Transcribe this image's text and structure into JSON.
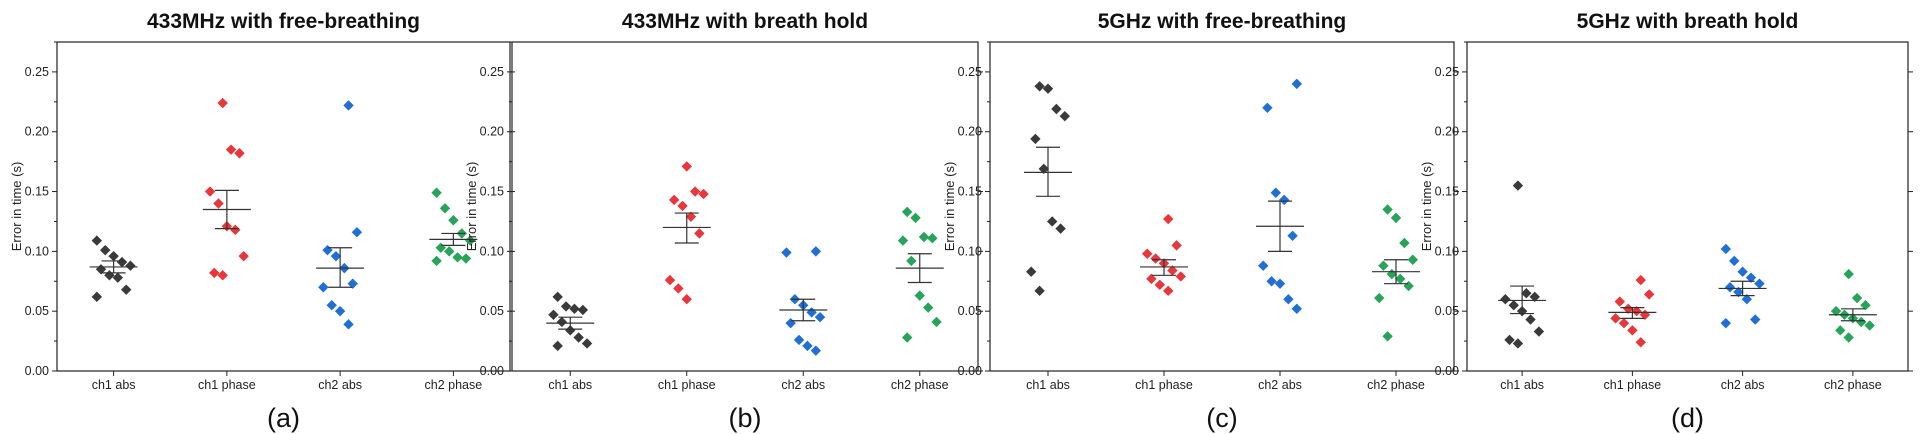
{
  "chart_data": [
    {
      "type": "scatter",
      "title": "433MHz with free-breathing",
      "panel_label": "(a)",
      "xlabel": "",
      "ylabel": "Error in time (s)",
      "ylim": [
        0,
        0.275
      ],
      "yticks": [
        "0.00",
        "0.05",
        "0.10",
        "0.15",
        "0.20",
        "0.25"
      ],
      "categories": [
        "ch1 abs",
        "ch1 phase",
        "ch2 abs",
        "ch2 phase"
      ],
      "series": [
        {
          "name": "ch1 abs",
          "color": "#3a3a3a",
          "mean": 0.087,
          "err_low": 0.082,
          "err_high": 0.092,
          "values": [
            0.062,
            0.068,
            0.078,
            0.08,
            0.085,
            0.088,
            0.091,
            0.096,
            0.101,
            0.109
          ]
        },
        {
          "name": "ch1 phase",
          "color": "#e8363a",
          "mean": 0.135,
          "err_low": 0.119,
          "err_high": 0.151,
          "values": [
            0.08,
            0.082,
            0.096,
            0.118,
            0.121,
            0.14,
            0.15,
            0.182,
            0.185,
            0.224
          ]
        },
        {
          "name": "ch2 abs",
          "color": "#1f6fd6",
          "mean": 0.086,
          "err_low": 0.07,
          "err_high": 0.103,
          "values": [
            0.039,
            0.05,
            0.055,
            0.07,
            0.073,
            0.086,
            0.096,
            0.101,
            0.116,
            0.222
          ]
        },
        {
          "name": "ch2 phase",
          "color": "#27a35a",
          "mean": 0.11,
          "err_low": 0.105,
          "err_high": 0.115,
          "values": [
            0.092,
            0.094,
            0.095,
            0.1,
            0.103,
            0.109,
            0.115,
            0.126,
            0.136,
            0.149
          ]
        }
      ]
    },
    {
      "type": "scatter",
      "title": "433MHz with breath hold",
      "panel_label": "(b)",
      "xlabel": "",
      "ylabel": "Error in time (s)",
      "ylim": [
        0,
        0.275
      ],
      "yticks": [
        "0.00",
        "0.05",
        "0.10",
        "0.15",
        "0.20",
        "0.25"
      ],
      "categories": [
        "ch1 abs",
        "ch1 phase",
        "ch2 abs",
        "ch2 phase"
      ],
      "series": [
        {
          "name": "ch1 abs",
          "color": "#3a3a3a",
          "mean": 0.04,
          "err_low": 0.035,
          "err_high": 0.045,
          "values": [
            0.021,
            0.023,
            0.028,
            0.034,
            0.041,
            0.047,
            0.051,
            0.052,
            0.054,
            0.062
          ]
        },
        {
          "name": "ch1 phase",
          "color": "#e8363a",
          "mean": 0.12,
          "err_low": 0.107,
          "err_high": 0.132,
          "values": [
            0.06,
            0.069,
            0.076,
            0.115,
            0.129,
            0.138,
            0.143,
            0.148,
            0.15,
            0.171
          ]
        },
        {
          "name": "ch2 abs",
          "color": "#1f6fd6",
          "mean": 0.051,
          "err_low": 0.042,
          "err_high": 0.06,
          "values": [
            0.017,
            0.021,
            0.026,
            0.04,
            0.045,
            0.049,
            0.055,
            0.06,
            0.099,
            0.1
          ]
        },
        {
          "name": "ch2 phase",
          "color": "#27a35a",
          "mean": 0.086,
          "err_low": 0.074,
          "err_high": 0.098,
          "values": [
            0.028,
            0.041,
            0.053,
            0.063,
            0.092,
            0.109,
            0.111,
            0.112,
            0.128,
            0.133
          ]
        }
      ]
    },
    {
      "type": "scatter",
      "title": "5GHz with free-breathing",
      "panel_label": "(c)",
      "xlabel": "",
      "ylabel": "Error in time (s)",
      "ylim": [
        0,
        0.275
      ],
      "yticks": [
        "0.00",
        "0.05",
        "0.10",
        "0.15",
        "0.20",
        "0.25"
      ],
      "categories": [
        "ch1 abs",
        "ch1 phase",
        "ch2 abs",
        "ch2 phase"
      ],
      "series": [
        {
          "name": "ch1 abs",
          "color": "#3a3a3a",
          "mean": 0.166,
          "err_low": 0.146,
          "err_high": 0.187,
          "values": [
            0.067,
            0.083,
            0.119,
            0.125,
            0.169,
            0.194,
            0.213,
            0.219,
            0.236,
            0.238
          ]
        },
        {
          "name": "ch1 phase",
          "color": "#e8363a",
          "mean": 0.087,
          "err_low": 0.08,
          "err_high": 0.093,
          "values": [
            0.067,
            0.072,
            0.077,
            0.079,
            0.084,
            0.09,
            0.094,
            0.098,
            0.105,
            0.127
          ]
        },
        {
          "name": "ch2 abs",
          "color": "#1f6fd6",
          "mean": 0.121,
          "err_low": 0.1,
          "err_high": 0.142,
          "values": [
            0.052,
            0.06,
            0.073,
            0.075,
            0.088,
            0.113,
            0.143,
            0.149,
            0.22,
            0.24
          ]
        },
        {
          "name": "ch2 phase",
          "color": "#27a35a",
          "mean": 0.083,
          "err_low": 0.073,
          "err_high": 0.093,
          "values": [
            0.029,
            0.061,
            0.071,
            0.077,
            0.081,
            0.088,
            0.093,
            0.107,
            0.128,
            0.135
          ]
        }
      ]
    },
    {
      "type": "scatter",
      "title": "5GHz with breath hold",
      "panel_label": "(d)",
      "xlabel": "",
      "ylabel": "Error in time (s)",
      "ylim": [
        0,
        0.275
      ],
      "yticks": [
        "0.00",
        "0.05",
        "0.10",
        "0.15",
        "0.20",
        "0.25"
      ],
      "categories": [
        "ch1 abs",
        "ch1 phase",
        "ch2 abs",
        "ch2 phase"
      ],
      "series": [
        {
          "name": "ch1 abs",
          "color": "#3a3a3a",
          "mean": 0.059,
          "err_low": 0.048,
          "err_high": 0.071,
          "values": [
            0.023,
            0.026,
            0.033,
            0.043,
            0.05,
            0.055,
            0.06,
            0.062,
            0.065,
            0.155
          ]
        },
        {
          "name": "ch1 phase",
          "color": "#e8363a",
          "mean": 0.049,
          "err_low": 0.044,
          "err_high": 0.053,
          "values": [
            0.024,
            0.034,
            0.04,
            0.044,
            0.047,
            0.05,
            0.052,
            0.058,
            0.064,
            0.076
          ]
        },
        {
          "name": "ch2 abs",
          "color": "#1f6fd6",
          "mean": 0.069,
          "err_low": 0.063,
          "err_high": 0.075,
          "values": [
            0.04,
            0.043,
            0.06,
            0.066,
            0.07,
            0.073,
            0.078,
            0.083,
            0.092,
            0.102
          ]
        },
        {
          "name": "ch2 phase",
          "color": "#27a35a",
          "mean": 0.047,
          "err_low": 0.042,
          "err_high": 0.052,
          "values": [
            0.028,
            0.034,
            0.038,
            0.041,
            0.044,
            0.047,
            0.05,
            0.055,
            0.061,
            0.081
          ]
        }
      ]
    }
  ]
}
